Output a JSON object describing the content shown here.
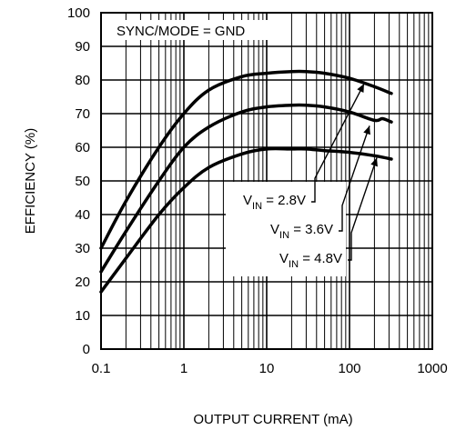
{
  "chart_data": {
    "type": "line",
    "title": "",
    "xlabel": "OUTPUT CURRENT (mA)",
    "ylabel": "EFFICIENCY (%)",
    "x_scale": "log",
    "xlim": [
      0.1,
      1000
    ],
    "ylim": [
      0,
      100
    ],
    "x_ticks": [
      "0.1",
      "1",
      "10",
      "100",
      "1000"
    ],
    "y_ticks": [
      "0",
      "10",
      "20",
      "30",
      "40",
      "50",
      "60",
      "70",
      "80",
      "90",
      "100"
    ],
    "grid": true,
    "annotation": "SYNC/MODE = GND",
    "series": [
      {
        "name": "V_IN = 2.8V",
        "label_main": "V",
        "label_sub": "IN",
        "label_value": " = 2.8V",
        "x": [
          0.1,
          0.2,
          0.5,
          1,
          2,
          5,
          10,
          20,
          30,
          50,
          100,
          200,
          320
        ],
        "y": [
          30,
          44,
          60,
          70,
          77,
          81,
          82,
          82.5,
          82.5,
          82,
          80.5,
          78,
          76
        ]
      },
      {
        "name": "V_IN = 3.6V",
        "label_main": "V",
        "label_sub": "IN",
        "label_value": " = 3.6V",
        "x": [
          0.1,
          0.2,
          0.5,
          1,
          2,
          5,
          10,
          20,
          30,
          50,
          100,
          200,
          250,
          320
        ],
        "y": [
          23,
          35,
          50,
          60,
          66,
          70.5,
          72,
          72.5,
          72.5,
          72,
          70.5,
          68,
          68.5,
          67.5
        ]
      },
      {
        "name": "V_IN = 4.8V",
        "label_main": "V",
        "label_sub": "IN",
        "label_value": " = 4.8V",
        "x": [
          0.1,
          0.2,
          0.5,
          1,
          2,
          5,
          10,
          20,
          30,
          50,
          100,
          200,
          320
        ],
        "y": [
          17,
          27,
          40,
          48,
          54,
          58,
          59.5,
          59.5,
          59.5,
          59,
          58.5,
          57.5,
          56.5
        ]
      }
    ]
  }
}
